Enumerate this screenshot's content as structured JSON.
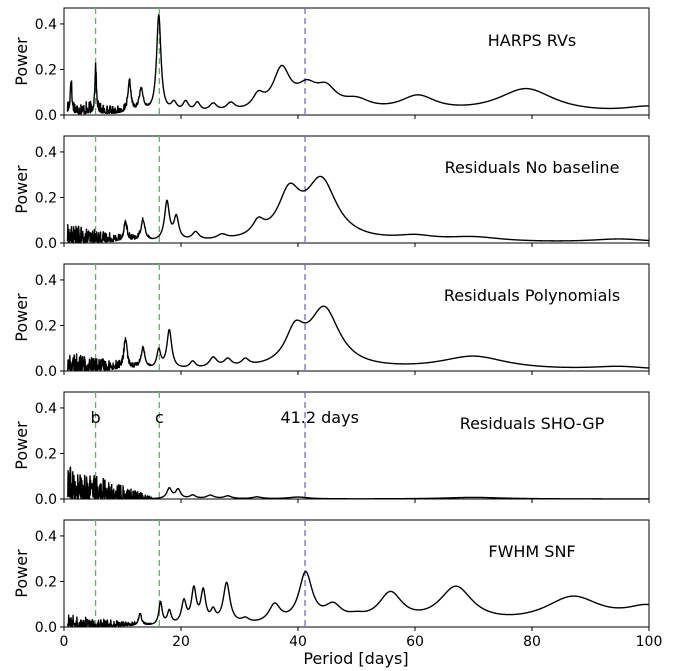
{
  "figure": {
    "xlabel": "Period [days]",
    "xticks": [
      "0",
      "20",
      "40",
      "60",
      "80",
      "100"
    ]
  },
  "chart_data": [
    {
      "type": "line",
      "title": "HARPS RVs",
      "ylabel": "Power",
      "xlim": [
        0,
        100
      ],
      "ylim": [
        0,
        0.47
      ],
      "yticks": [
        "0.0",
        "0.2",
        "0.4"
      ],
      "vlines": [
        {
          "x": 5.4,
          "color": "#5cb85c"
        },
        {
          "x": 16.3,
          "color": "#5cb85c"
        },
        {
          "x": 41.2,
          "color": "#6b6bdf"
        }
      ],
      "peaks": [
        {
          "x": 1.2,
          "y": 0.14,
          "w": 0.15
        },
        {
          "x": 5.4,
          "y": 0.2,
          "w": 0.15
        },
        {
          "x": 11.2,
          "y": 0.13,
          "w": 0.3
        },
        {
          "x": 13.2,
          "y": 0.1,
          "w": 0.4
        },
        {
          "x": 16.2,
          "y": 0.43,
          "w": 0.45
        },
        {
          "x": 18.8,
          "y": 0.04,
          "w": 0.6
        },
        {
          "x": 20.8,
          "y": 0.045,
          "w": 0.6
        },
        {
          "x": 22.8,
          "y": 0.04,
          "w": 0.6
        },
        {
          "x": 25.5,
          "y": 0.035,
          "w": 0.8
        },
        {
          "x": 28.5,
          "y": 0.035,
          "w": 0.9
        },
        {
          "x": 33.2,
          "y": 0.06,
          "w": 1.2
        },
        {
          "x": 37.2,
          "y": 0.18,
          "w": 1.8
        },
        {
          "x": 41.5,
          "y": 0.09,
          "w": 2.2
        },
        {
          "x": 44.8,
          "y": 0.085,
          "w": 2.2
        },
        {
          "x": 50,
          "y": 0.045,
          "w": 3
        },
        {
          "x": 60.5,
          "y": 0.07,
          "w": 3.8
        },
        {
          "x": 79,
          "y": 0.11,
          "w": 6
        },
        {
          "x": 100,
          "y": 0.03,
          "w": 5
        }
      ],
      "noise_amplitude": 0.05
    },
    {
      "type": "line",
      "title": "Residuals No baseline",
      "ylabel": "Power",
      "xlim": [
        0,
        100
      ],
      "ylim": [
        0,
        0.47
      ],
      "yticks": [
        "0.0",
        "0.2",
        "0.4"
      ],
      "vlines": [
        {
          "x": 5.4,
          "color": "#5cb85c"
        },
        {
          "x": 16.3,
          "color": "#5cb85c"
        },
        {
          "x": 41.2,
          "color": "#6b6bdf"
        }
      ],
      "peaks": [
        {
          "x": 10.5,
          "y": 0.08,
          "w": 0.3
        },
        {
          "x": 13.5,
          "y": 0.09,
          "w": 0.4
        },
        {
          "x": 17.6,
          "y": 0.17,
          "w": 0.5
        },
        {
          "x": 19.2,
          "y": 0.1,
          "w": 0.5
        },
        {
          "x": 22.5,
          "y": 0.035,
          "w": 0.7
        },
        {
          "x": 27,
          "y": 0.02,
          "w": 1
        },
        {
          "x": 33.2,
          "y": 0.06,
          "w": 1.2
        },
        {
          "x": 38.5,
          "y": 0.19,
          "w": 2.3
        },
        {
          "x": 44,
          "y": 0.26,
          "w": 3.2
        },
        {
          "x": 60,
          "y": 0.02,
          "w": 4
        },
        {
          "x": 70,
          "y": 0.02,
          "w": 6
        },
        {
          "x": 95,
          "y": 0.015,
          "w": 6
        }
      ],
      "noise_amplitude": 0.06
    },
    {
      "type": "line",
      "title": "Residuals Polynomials",
      "ylabel": "Power",
      "xlim": [
        0,
        100
      ],
      "ylim": [
        0,
        0.47
      ],
      "yticks": [
        "0.0",
        "0.2",
        "0.4"
      ],
      "vlines": [
        {
          "x": 5.4,
          "color": "#5cb85c"
        },
        {
          "x": 16.3,
          "color": "#5cb85c"
        },
        {
          "x": 41.2,
          "color": "#6b6bdf"
        }
      ],
      "peaks": [
        {
          "x": 10.5,
          "y": 0.13,
          "w": 0.3
        },
        {
          "x": 13.5,
          "y": 0.09,
          "w": 0.4
        },
        {
          "x": 16.2,
          "y": 0.08,
          "w": 0.4
        },
        {
          "x": 18,
          "y": 0.17,
          "w": 0.5
        },
        {
          "x": 22,
          "y": 0.03,
          "w": 0.6
        },
        {
          "x": 25.5,
          "y": 0.045,
          "w": 0.8
        },
        {
          "x": 28,
          "y": 0.035,
          "w": 0.8
        },
        {
          "x": 31,
          "y": 0.03,
          "w": 0.8
        },
        {
          "x": 39.5,
          "y": 0.14,
          "w": 2
        },
        {
          "x": 44.5,
          "y": 0.26,
          "w": 3.2
        },
        {
          "x": 70,
          "y": 0.06,
          "w": 7
        },
        {
          "x": 95,
          "y": 0.015,
          "w": 6
        }
      ],
      "noise_amplitude": 0.06
    },
    {
      "type": "line",
      "title": "Residuals SHO-GP",
      "ylabel": "Power",
      "xlim": [
        0,
        100
      ],
      "ylim": [
        0,
        0.47
      ],
      "yticks": [
        "0.0",
        "0.2",
        "0.4"
      ],
      "vlines": [
        {
          "x": 5.4,
          "color": "#5cb85c"
        },
        {
          "x": 16.3,
          "color": "#5cb85c"
        },
        {
          "x": 41.2,
          "color": "#6b6bdf"
        }
      ],
      "annotations": [
        {
          "text": "b",
          "x": 5.4
        },
        {
          "text": "c",
          "x": 16.3
        },
        {
          "text": "41.2 days",
          "x": 37
        }
      ],
      "peaks": [
        {
          "x": 18,
          "y": 0.045,
          "w": 0.5
        },
        {
          "x": 19.5,
          "y": 0.04,
          "w": 0.5
        },
        {
          "x": 22,
          "y": 0.015,
          "w": 0.6
        },
        {
          "x": 25,
          "y": 0.015,
          "w": 0.8
        },
        {
          "x": 28,
          "y": 0.012,
          "w": 0.8
        },
        {
          "x": 33,
          "y": 0.008,
          "w": 1
        },
        {
          "x": 40,
          "y": 0.008,
          "w": 2
        },
        {
          "x": 70,
          "y": 0.007,
          "w": 6
        }
      ],
      "noise_amplitude": 0.11
    },
    {
      "type": "line",
      "title": "FWHM SNF",
      "ylabel": "Power",
      "xlim": [
        0,
        100
      ],
      "ylim": [
        0,
        0.47
      ],
      "yticks": [
        "0.0",
        "0.2",
        "0.4"
      ],
      "vlines": [
        {
          "x": 5.4,
          "color": "#5cb85c"
        },
        {
          "x": 16.3,
          "color": "#5cb85c"
        },
        {
          "x": 41.2,
          "color": "#6b6bdf"
        }
      ],
      "peaks": [
        {
          "x": 13,
          "y": 0.05,
          "w": 0.3
        },
        {
          "x": 16.5,
          "y": 0.1,
          "w": 0.35
        },
        {
          "x": 18,
          "y": 0.06,
          "w": 0.4
        },
        {
          "x": 20.5,
          "y": 0.1,
          "w": 0.5
        },
        {
          "x": 22.2,
          "y": 0.15,
          "w": 0.5
        },
        {
          "x": 23.8,
          "y": 0.14,
          "w": 0.5
        },
        {
          "x": 25.5,
          "y": 0.05,
          "w": 0.5
        },
        {
          "x": 27.8,
          "y": 0.18,
          "w": 0.7
        },
        {
          "x": 31,
          "y": 0.02,
          "w": 0.8
        },
        {
          "x": 36,
          "y": 0.08,
          "w": 1.2
        },
        {
          "x": 41.3,
          "y": 0.22,
          "w": 1.4
        },
        {
          "x": 46,
          "y": 0.07,
          "w": 1.8
        },
        {
          "x": 50,
          "y": 0.02,
          "w": 2
        },
        {
          "x": 55.8,
          "y": 0.13,
          "w": 2.5
        },
        {
          "x": 67,
          "y": 0.16,
          "w": 3.5
        },
        {
          "x": 87,
          "y": 0.12,
          "w": 6
        },
        {
          "x": 100,
          "y": 0.075,
          "w": 5
        }
      ],
      "noise_amplitude": 0.04
    }
  ]
}
